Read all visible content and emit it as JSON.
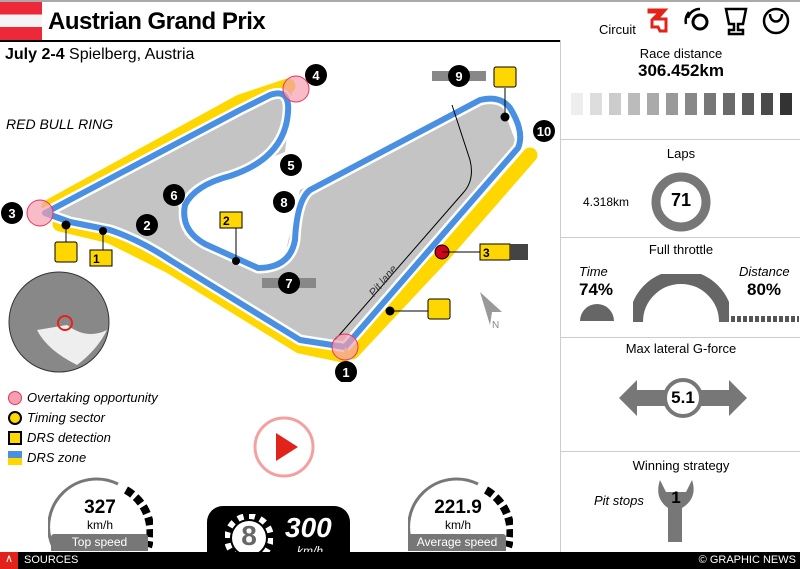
{
  "header": {
    "title": "Austrian Grand Prix",
    "circuit_label": "Circuit",
    "tabs": [
      "circuit-icon",
      "tyre-icon",
      "trophy-icon",
      "steering-wheel-icon"
    ],
    "flag_colors": [
      "#ed2939",
      "#f4f4f4"
    ]
  },
  "subtitle": {
    "date": "July 2-4",
    "location": "Spielberg, Austria"
  },
  "track": {
    "name": "RED BULL RING",
    "pit_lane": "Pit lane",
    "north": "N",
    "corners": [
      "1",
      "2",
      "3",
      "4",
      "5",
      "6",
      "7",
      "8",
      "9",
      "10"
    ],
    "sectors": [
      "1",
      "2",
      "3"
    ],
    "colors": {
      "track": "#4a90e2",
      "drs": "#ffd700",
      "overtake": "#f4a0b0",
      "start": "#d0021b"
    }
  },
  "legend": {
    "items": [
      "Overtaking opportunity",
      "Timing sector",
      "DRS detection",
      "DRS zone"
    ]
  },
  "stats": {
    "race_distance": {
      "label": "Race distance",
      "value": "306.452km"
    },
    "laps": {
      "label": "Laps",
      "value": "71",
      "lap_length": "4.318km"
    },
    "full_throttle": {
      "label": "Full throttle",
      "time_label": "Time",
      "time_value": "74%",
      "distance_label": "Distance",
      "distance_value": "80%"
    },
    "g_force": {
      "label": "Max lateral G-force",
      "value": "5.1"
    },
    "strategy": {
      "label": "Winning strategy",
      "pit_label": "Pit stops",
      "pit_value": "1"
    }
  },
  "speed": {
    "top": {
      "value": "327",
      "unit": "km/h",
      "label": "Top speed"
    },
    "avg": {
      "value": "221.9",
      "unit": "km/h",
      "label": "Average speed"
    },
    "gear": "8",
    "gear_speed": "300",
    "gear_unit": "km/h"
  },
  "footer": {
    "sources": "SOURCES",
    "credit": "© GRAPHIC NEWS"
  }
}
